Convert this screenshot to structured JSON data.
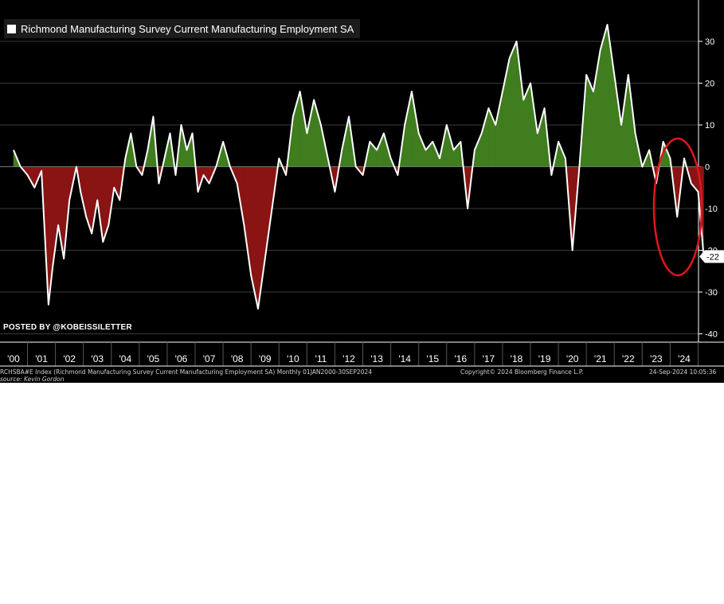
{
  "chart_data": {
    "type": "area",
    "title": "Richmond Manufacturing Survey Current Manufacturing Employment SA",
    "legend": "Richmond Manufacturing Survey Current Manufacturing Employment SA",
    "legend_placement": "top-left",
    "x_tick_labels": [
      "'00",
      "'01",
      "'02",
      "'03",
      "'04",
      "'05",
      "'06",
      "'07",
      "'08",
      "'09",
      "'10",
      "'11",
      "'12",
      "'13",
      "'14",
      "'15",
      "'16",
      "'17",
      "'18",
      "'19",
      "'20",
      "'21",
      "'22",
      "'23",
      "'24"
    ],
    "y_ticks": [
      30,
      20,
      10,
      0,
      -10,
      -20,
      -30,
      -40
    ],
    "y_tick_labels": [
      "30",
      "20",
      "10",
      "0",
      "-10",
      "-20",
      "-30",
      "-40"
    ],
    "ylim": [
      -40,
      40
    ],
    "xlim": [
      2000.0,
      2025.0
    ],
    "grid": true,
    "axis_side": "right",
    "positive_fill": "#3f7d1e",
    "negative_fill": "#8a1414",
    "line_color": "#ffffff",
    "last_value_label": "-22",
    "last_value": -21.5,
    "annotation": "red ellipse highlighting the 2024 decline",
    "annotation_color": "#e0161b",
    "series": [
      {
        "name": "Richmond Manufacturing Survey Current Manufacturing Employment SA",
        "points": [
          [
            2000.0,
            4
          ],
          [
            2000.25,
            0
          ],
          [
            2000.5,
            -2
          ],
          [
            2000.75,
            -5
          ],
          [
            2001.0,
            -1
          ],
          [
            2001.25,
            -33
          ],
          [
            2001.4,
            -24
          ],
          [
            2001.6,
            -14
          ],
          [
            2001.8,
            -22
          ],
          [
            2002.0,
            -8
          ],
          [
            2002.25,
            0
          ],
          [
            2002.4,
            -6
          ],
          [
            2002.6,
            -12
          ],
          [
            2002.8,
            -16
          ],
          [
            2003.0,
            -8
          ],
          [
            2003.2,
            -18
          ],
          [
            2003.4,
            -14
          ],
          [
            2003.6,
            -5
          ],
          [
            2003.8,
            -8
          ],
          [
            2004.0,
            2
          ],
          [
            2004.2,
            8
          ],
          [
            2004.4,
            0
          ],
          [
            2004.6,
            -2
          ],
          [
            2004.8,
            4
          ],
          [
            2005.0,
            12
          ],
          [
            2005.2,
            -4
          ],
          [
            2005.4,
            2
          ],
          [
            2005.6,
            8
          ],
          [
            2005.8,
            -2
          ],
          [
            2006.0,
            10
          ],
          [
            2006.2,
            4
          ],
          [
            2006.4,
            8
          ],
          [
            2006.6,
            -6
          ],
          [
            2006.8,
            -2
          ],
          [
            2007.0,
            -4
          ],
          [
            2007.25,
            0
          ],
          [
            2007.5,
            6
          ],
          [
            2007.75,
            0
          ],
          [
            2008.0,
            -4
          ],
          [
            2008.25,
            -14
          ],
          [
            2008.5,
            -26
          ],
          [
            2008.75,
            -34
          ],
          [
            2009.0,
            -22
          ],
          [
            2009.25,
            -10
          ],
          [
            2009.5,
            2
          ],
          [
            2009.75,
            -2
          ],
          [
            2010.0,
            12
          ],
          [
            2010.25,
            18
          ],
          [
            2010.5,
            8
          ],
          [
            2010.75,
            16
          ],
          [
            2011.0,
            10
          ],
          [
            2011.25,
            2
          ],
          [
            2011.5,
            -6
          ],
          [
            2011.75,
            4
          ],
          [
            2012.0,
            12
          ],
          [
            2012.25,
            0
          ],
          [
            2012.5,
            -2
          ],
          [
            2012.75,
            6
          ],
          [
            2013.0,
            4
          ],
          [
            2013.25,
            8
          ],
          [
            2013.5,
            2
          ],
          [
            2013.75,
            -2
          ],
          [
            2014.0,
            10
          ],
          [
            2014.25,
            18
          ],
          [
            2014.5,
            8
          ],
          [
            2014.75,
            4
          ],
          [
            2015.0,
            6
          ],
          [
            2015.25,
            2
          ],
          [
            2015.5,
            10
          ],
          [
            2015.75,
            4
          ],
          [
            2016.0,
            6
          ],
          [
            2016.25,
            -10
          ],
          [
            2016.5,
            4
          ],
          [
            2016.75,
            8
          ],
          [
            2017.0,
            14
          ],
          [
            2017.25,
            10
          ],
          [
            2017.5,
            18
          ],
          [
            2017.75,
            26
          ],
          [
            2018.0,
            30
          ],
          [
            2018.25,
            16
          ],
          [
            2018.5,
            20
          ],
          [
            2018.75,
            8
          ],
          [
            2019.0,
            14
          ],
          [
            2019.25,
            -2
          ],
          [
            2019.5,
            6
          ],
          [
            2019.75,
            2
          ],
          [
            2020.0,
            -20
          ],
          [
            2020.25,
            0
          ],
          [
            2020.5,
            22
          ],
          [
            2020.75,
            18
          ],
          [
            2021.0,
            28
          ],
          [
            2021.25,
            34
          ],
          [
            2021.5,
            22
          ],
          [
            2021.75,
            10
          ],
          [
            2022.0,
            22
          ],
          [
            2022.25,
            8
          ],
          [
            2022.5,
            0
          ],
          [
            2022.75,
            4
          ],
          [
            2023.0,
            -4
          ],
          [
            2023.25,
            6
          ],
          [
            2023.5,
            2
          ],
          [
            2023.75,
            -12
          ],
          [
            2024.0,
            2
          ],
          [
            2024.25,
            -4
          ],
          [
            2024.5,
            -6
          ],
          [
            2024.7,
            -21.5
          ]
        ]
      }
    ]
  },
  "watermark": "POSTED BY @KOBEISSILETTER",
  "footer": {
    "index_info": "RCHSBA#E Index (Richmond Manufacturing Survey Current Manufacturing Employment SA) Monthly 01JAN2000-30SEP2024",
    "source": "source: Kevin Gordon",
    "copyright": "Copyright© 2024 Bloomberg Finance L.P.",
    "timestamp": "24-Sep-2024 10:05:36"
  }
}
